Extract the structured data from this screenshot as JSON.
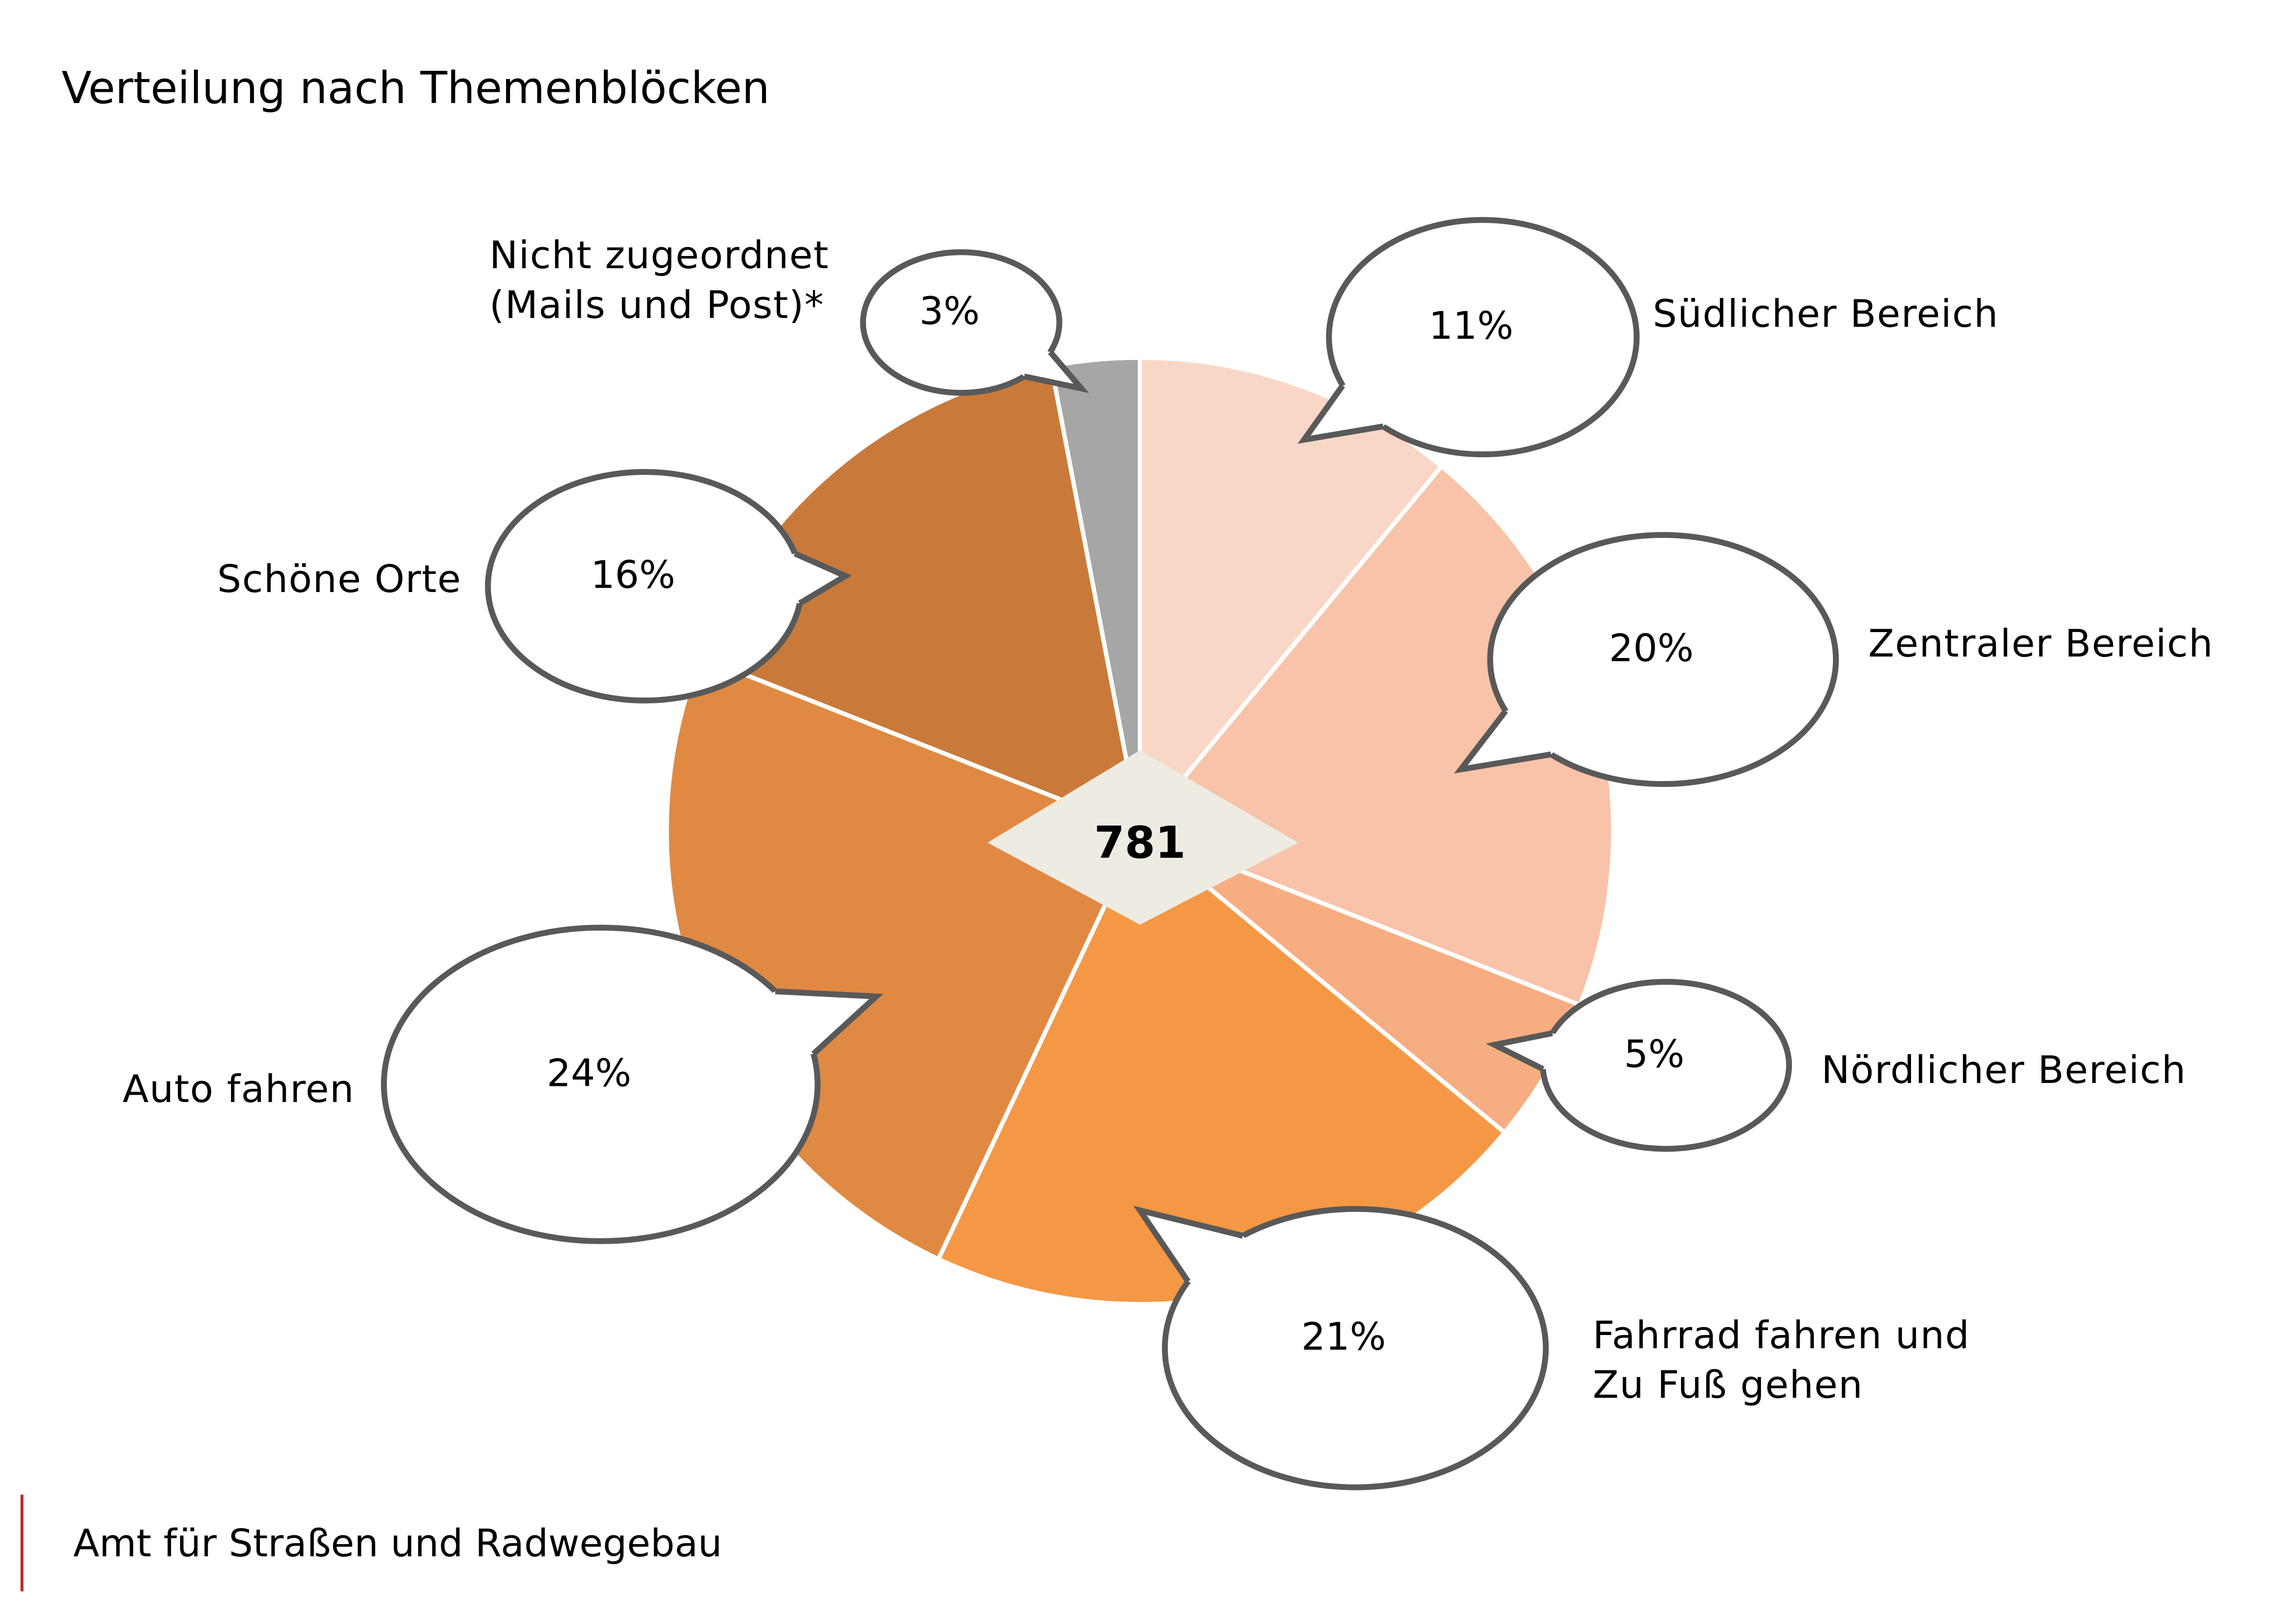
{
  "chart_data": {
    "type": "pie",
    "title": "Verteilung nach Themenblöcken",
    "categories": [
      "Südlicher Bereich",
      "Zentraler Bereich",
      "Nördlicher Bereich",
      "Fahrrad fahren und\nZu Fuß gehen",
      "Auto fahren",
      "Schöne Orte",
      "Nicht zugeordnet\n(Mails und Post)*"
    ],
    "values": [
      11,
      20,
      5,
      21,
      24,
      16,
      3
    ],
    "value_labels": [
      "11%",
      "20%",
      "5%",
      "21%",
      "24%",
      "16%",
      "3%"
    ],
    "colors": [
      "#f9d7c6",
      "#f8c3a8",
      "#f7ad82",
      "#f59845",
      "#e08942",
      "#c97a3a",
      "#a6a6a6"
    ],
    "total": 781
  },
  "footer": "Amt für Straßen und Radwegebau"
}
